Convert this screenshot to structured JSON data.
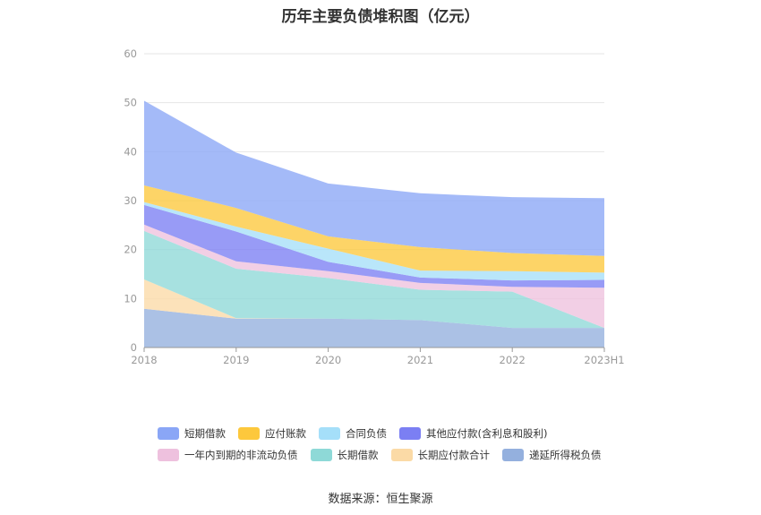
{
  "chart_data": {
    "type": "area",
    "stacked": true,
    "title": "历年主要负债堆积图（亿元）",
    "xlabel": "",
    "ylabel": "",
    "x": [
      "2018",
      "2019",
      "2020",
      "2021",
      "2022",
      "2023H1"
    ],
    "ylim": [
      0,
      60
    ],
    "yticks": [
      0,
      10,
      20,
      30,
      40,
      50,
      60
    ],
    "grid": true,
    "legend_position": "bottom",
    "series": [
      {
        "name": "递延所得税负债",
        "color": "#94b0de",
        "values": [
          7.9,
          5.9,
          5.9,
          5.6,
          4.0,
          4.0
        ]
      },
      {
        "name": "长期应付款合计",
        "color": "#fbdaa6",
        "values": [
          6.0,
          0.1,
          0.0,
          0.0,
          0.0,
          0.0
        ]
      },
      {
        "name": "长期借款",
        "color": "#8ed9d7",
        "values": [
          9.9,
          10.1,
          8.3,
          6.2,
          7.4,
          0.0
        ]
      },
      {
        "name": "一年内到期的非流动负债",
        "color": "#eec1de",
        "values": [
          1.3,
          1.5,
          1.4,
          1.4,
          1.0,
          8.2
        ]
      },
      {
        "name": "其他应付款(含利息和股利)",
        "color": "#7b7ff3",
        "values": [
          4.0,
          6.1,
          1.9,
          1.1,
          1.3,
          1.6
        ]
      },
      {
        "name": "合同负债",
        "color": "#a5dff9",
        "values": [
          0.6,
          1.0,
          2.7,
          1.4,
          1.9,
          1.5
        ]
      },
      {
        "name": "应付账款",
        "color": "#fdc83c",
        "values": [
          3.4,
          3.8,
          2.5,
          4.8,
          3.7,
          3.4
        ]
      },
      {
        "name": "短期借款",
        "color": "#8aa6f6",
        "values": [
          17.3,
          11.3,
          10.8,
          11.0,
          11.4,
          11.8
        ]
      }
    ],
    "legend_order": [
      "短期借款",
      "应付账款",
      "合同负债",
      "其他应付款(含利息和股利)",
      "一年内到期的非流动负债",
      "长期借款",
      "长期应付款合计",
      "递延所得税负债"
    ]
  },
  "source_text": "数据来源：恒生聚源"
}
